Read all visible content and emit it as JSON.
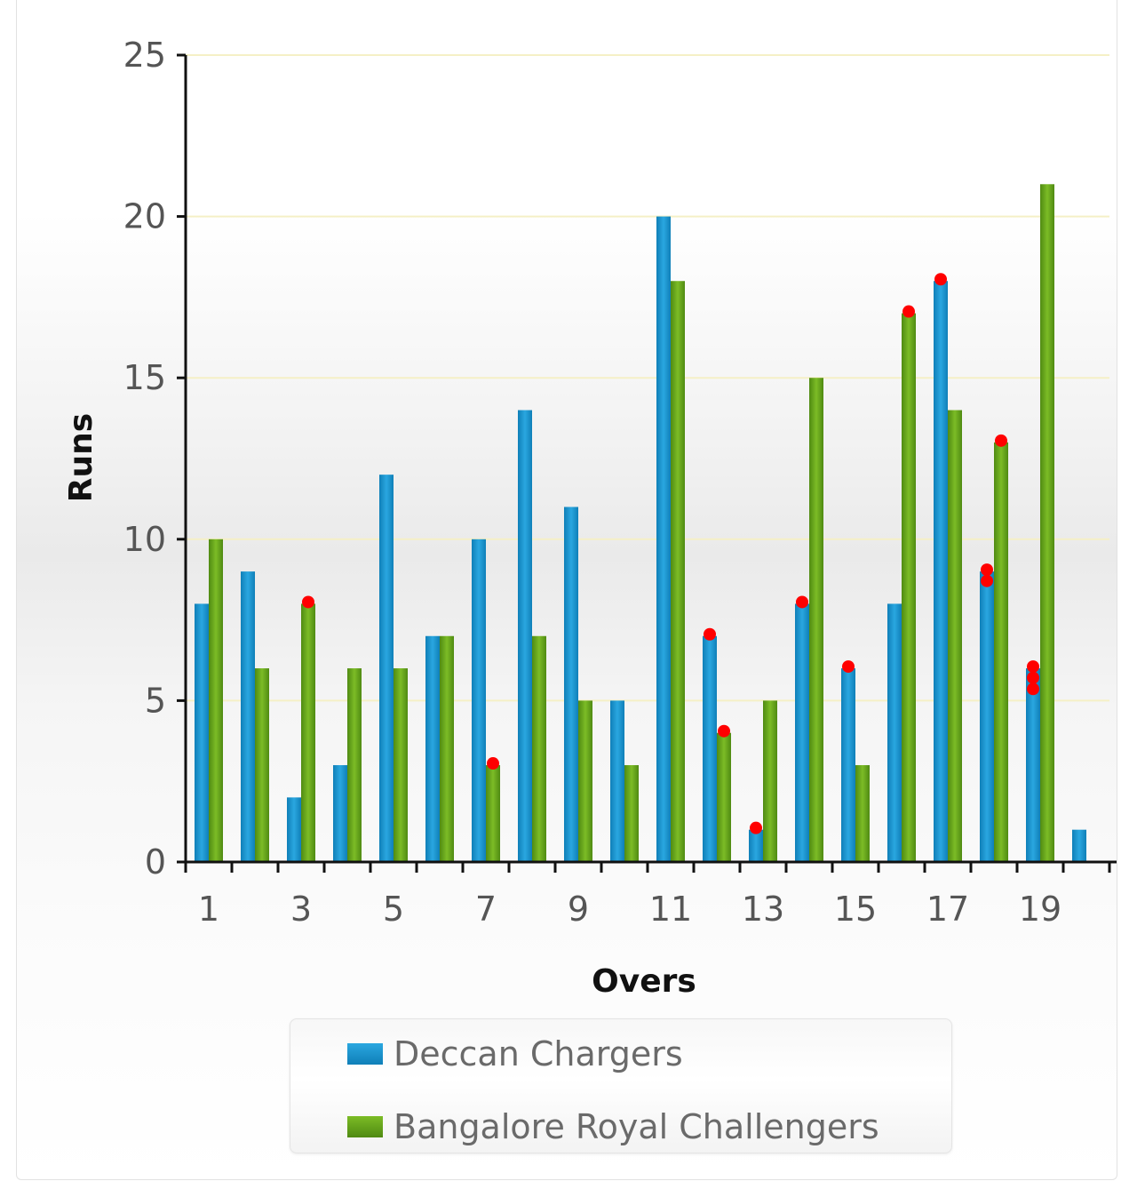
{
  "chart_data": {
    "type": "bar",
    "title": "",
    "xlabel": "Overs",
    "ylabel": "Runs",
    "ylim": [
      0,
      25
    ],
    "yticks": [
      0,
      5,
      10,
      15,
      20,
      25
    ],
    "grid": true,
    "legend_position": "bottom",
    "categories": [
      1,
      2,
      3,
      4,
      5,
      6,
      7,
      8,
      9,
      10,
      11,
      12,
      13,
      14,
      15,
      16,
      17,
      18,
      19,
      20
    ],
    "xtick_labels": [
      "1",
      "3",
      "5",
      "7",
      "9",
      "11",
      "13",
      "15",
      "17",
      "19"
    ],
    "series": [
      {
        "name": "Deccan Chargers",
        "color": "#1a9ad6",
        "values": [
          8,
          9,
          2,
          3,
          12,
          7,
          10,
          14,
          11,
          5,
          20,
          7,
          1,
          8,
          6,
          8,
          18,
          9,
          6,
          1
        ],
        "wickets": [
          0,
          0,
          0,
          0,
          0,
          0,
          0,
          0,
          0,
          0,
          0,
          1,
          1,
          1,
          1,
          0,
          1,
          2,
          3,
          0
        ]
      },
      {
        "name": "Bangalore Royal Challengers",
        "color": "#6aa51e",
        "values": [
          10,
          6,
          8,
          6,
          6,
          7,
          3,
          7,
          5,
          3,
          18,
          4,
          5,
          15,
          3,
          17,
          14,
          13,
          21,
          null
        ],
        "wickets": [
          0,
          0,
          1,
          0,
          0,
          0,
          1,
          0,
          0,
          0,
          0,
          1,
          0,
          0,
          0,
          1,
          0,
          1,
          0,
          0
        ]
      }
    ],
    "wicket_marker_color": "#ff0000"
  },
  "legend": {
    "items": [
      {
        "label": "Deccan Chargers",
        "color": "#1a9ad6"
      },
      {
        "label": "Bangalore Royal Challengers",
        "color": "#6aa51e"
      }
    ]
  }
}
